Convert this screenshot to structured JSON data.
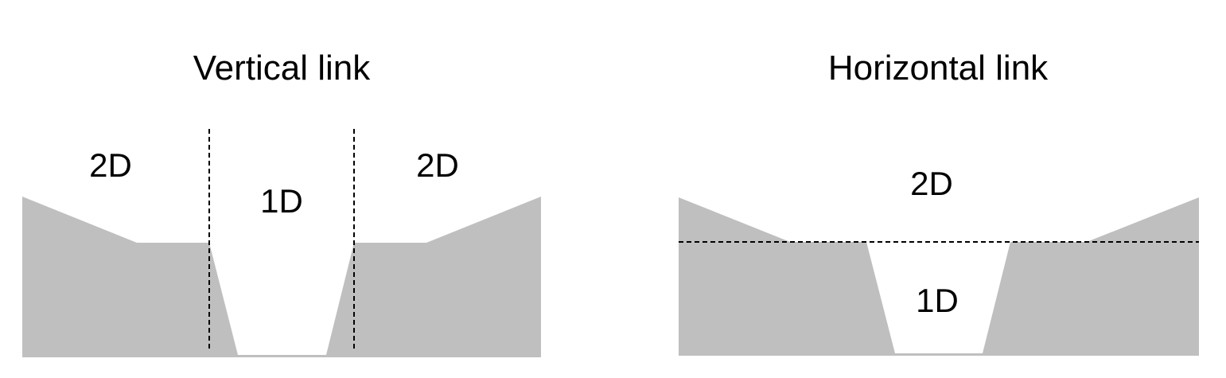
{
  "colors": {
    "ground": "#bfbfbf",
    "background": "#ffffff",
    "line": "#000000"
  },
  "vertical_link": {
    "title": "Vertical link",
    "label_left": "2D",
    "label_center": "1D",
    "label_right": "2D"
  },
  "horizontal_link": {
    "title": "Horizontal link",
    "label_top": "2D",
    "label_bottom": "1D"
  }
}
